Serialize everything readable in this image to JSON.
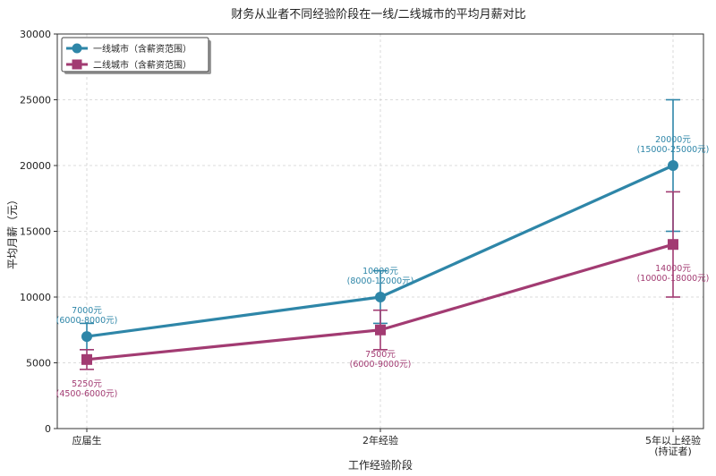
{
  "chart_data": {
    "type": "line",
    "title": "财务从业者不同经验阶段在一线/二线城市的平均月薪对比",
    "xlabel": "工作经验阶段",
    "ylabel": "平均月薪（元）",
    "categories": [
      "应届生",
      "2年经验",
      "5年以上经验\n(持证者)"
    ],
    "ylim": [
      0,
      30000
    ],
    "yticks": [
      "0",
      "5000",
      "10000",
      "15000",
      "20000",
      "25000",
      "30000"
    ],
    "grid": true,
    "legend_position": "top-left",
    "series": [
      {
        "name": "一线城市（含薪资范围）",
        "color": "#2e86a8",
        "marker": "circle",
        "values": [
          7000,
          10000,
          20000
        ],
        "low": [
          6000,
          8000,
          15000
        ],
        "high": [
          8000,
          12000,
          25000
        ],
        "labels": [
          "7000元\n(6000-8000元)",
          "10000元\n(8000-12000元)",
          "20000元\n(15000-25000元)"
        ]
      },
      {
        "name": "二线城市（含薪资范围）",
        "color": "#a23b72",
        "marker": "square",
        "values": [
          5250,
          7500,
          14000
        ],
        "low": [
          4500,
          6000,
          10000
        ],
        "high": [
          6000,
          9000,
          18000
        ],
        "labels": [
          "5250元\n(4500-6000元)",
          "7500元\n(6000-9000元)",
          "14000元\n(10000-18000元)"
        ]
      }
    ]
  }
}
